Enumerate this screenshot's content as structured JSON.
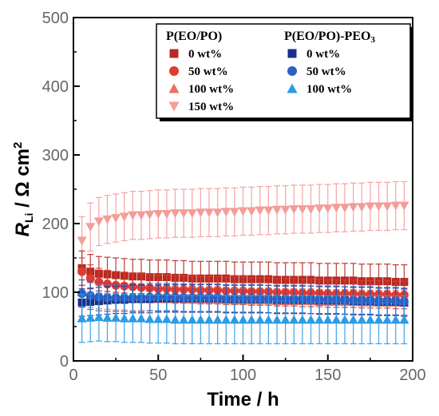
{
  "chart_data": {
    "type": "scatter",
    "xlabel": "Time / h",
    "ylabel_main": "R",
    "ylabel_sub": "Li",
    "ylabel_rest": " / Ω cm",
    "ylabel_sup": "2",
    "xlim": [
      0,
      200
    ],
    "ylim": [
      0,
      500
    ],
    "xticks": [
      "0",
      "50",
      "100",
      "150",
      "200"
    ],
    "yticks": [
      "0",
      "100",
      "200",
      "300",
      "400",
      "500"
    ],
    "legend_placement": "top-right",
    "legend_groups": [
      {
        "title": "P(EO/PO)",
        "title_sub": ""
      },
      {
        "title": "P(EO/PO)-PEO",
        "title_sub": "3"
      }
    ],
    "x": [
      5,
      10,
      15,
      20,
      25,
      30,
      35,
      40,
      45,
      50,
      55,
      60,
      65,
      70,
      75,
      80,
      85,
      90,
      95,
      100,
      105,
      110,
      115,
      120,
      125,
      130,
      135,
      140,
      145,
      150,
      155,
      160,
      165,
      170,
      175,
      180,
      185,
      190,
      195
    ],
    "series": [
      {
        "name": "0 wt%",
        "group": 0,
        "marker": "square",
        "color": "#b52a22",
        "err": 25,
        "values": [
          135,
          130,
          127,
          126,
          125,
          124,
          123,
          123,
          122,
          122,
          122,
          121,
          121,
          120,
          120,
          120,
          120,
          120,
          119,
          119,
          119,
          119,
          119,
          118,
          118,
          118,
          118,
          118,
          117,
          117,
          117,
          117,
          117,
          116,
          116,
          116,
          116,
          115,
          115
        ]
      },
      {
        "name": "50 wt%",
        "group": 0,
        "marker": "circle",
        "color": "#e13a2e",
        "err": 20,
        "values": [
          130,
          120,
          115,
          112,
          110,
          109,
          108,
          107,
          106,
          105,
          105,
          104,
          104,
          104,
          103,
          103,
          103,
          102,
          102,
          102,
          101,
          101,
          101,
          100,
          100,
          100,
          99,
          99,
          99,
          98,
          98,
          98,
          98,
          97,
          97,
          97,
          97,
          96,
          96
        ]
      },
      {
        "name": "100 wt%",
        "group": 0,
        "marker": "triangle-up",
        "color": "#f06d62",
        "err": 18,
        "values": [
          100,
          96,
          94,
          93,
          92,
          92,
          91,
          91,
          91,
          90,
          90,
          90,
          90,
          89,
          89,
          89,
          89,
          89,
          88,
          88,
          88,
          88,
          88,
          87,
          87,
          87,
          87,
          87,
          86,
          86,
          86,
          86,
          86,
          85,
          85,
          85,
          85,
          85,
          85
        ]
      },
      {
        "name": "150 wt%",
        "group": 0,
        "marker": "triangle-down",
        "color": "#f49c98",
        "err": 35,
        "values": [
          175,
          195,
          203,
          206,
          208,
          210,
          212,
          212,
          213,
          214,
          214,
          215,
          215,
          215,
          216,
          216,
          216,
          217,
          217,
          218,
          218,
          219,
          219,
          220,
          220,
          221,
          221,
          221,
          222,
          222,
          223,
          223,
          224,
          224,
          225,
          225,
          225,
          226,
          226
        ]
      },
      {
        "name": "0 wt%",
        "group": 1,
        "marker": "square",
        "color": "#1a2f8a",
        "err": 20,
        "values": [
          85,
          86,
          87,
          88,
          89,
          89,
          90,
          90,
          90,
          91,
          91,
          91,
          91,
          91,
          91,
          91,
          91,
          90,
          90,
          90,
          90,
          90,
          90,
          89,
          89,
          89,
          89,
          89,
          88,
          88,
          88,
          88,
          87,
          87,
          87,
          86,
          86,
          86,
          85
        ]
      },
      {
        "name": "50 wt%",
        "group": 1,
        "marker": "circle",
        "color": "#2b5fc2",
        "err": 20,
        "values": [
          98,
          95,
          93,
          92,
          92,
          92,
          92,
          92,
          93,
          93,
          93,
          93,
          92,
          92,
          92,
          92,
          92,
          91,
          91,
          91,
          91,
          91,
          90,
          90,
          90,
          90,
          90,
          89,
          89,
          89,
          89,
          88,
          88,
          88,
          88,
          87,
          87,
          87,
          86
        ]
      },
      {
        "name": "100 wt%",
        "group": 1,
        "marker": "triangle-up",
        "color": "#2b9be6",
        "err": 35,
        "values": [
          62,
          63,
          64,
          63,
          63,
          62,
          62,
          62,
          61,
          61,
          61,
          60,
          60,
          60,
          60,
          60,
          60,
          60,
          60,
          60,
          60,
          60,
          60,
          60,
          60,
          60,
          60,
          60,
          60,
          60,
          60,
          60,
          60,
          60,
          60,
          60,
          60,
          60,
          60
        ]
      }
    ]
  }
}
